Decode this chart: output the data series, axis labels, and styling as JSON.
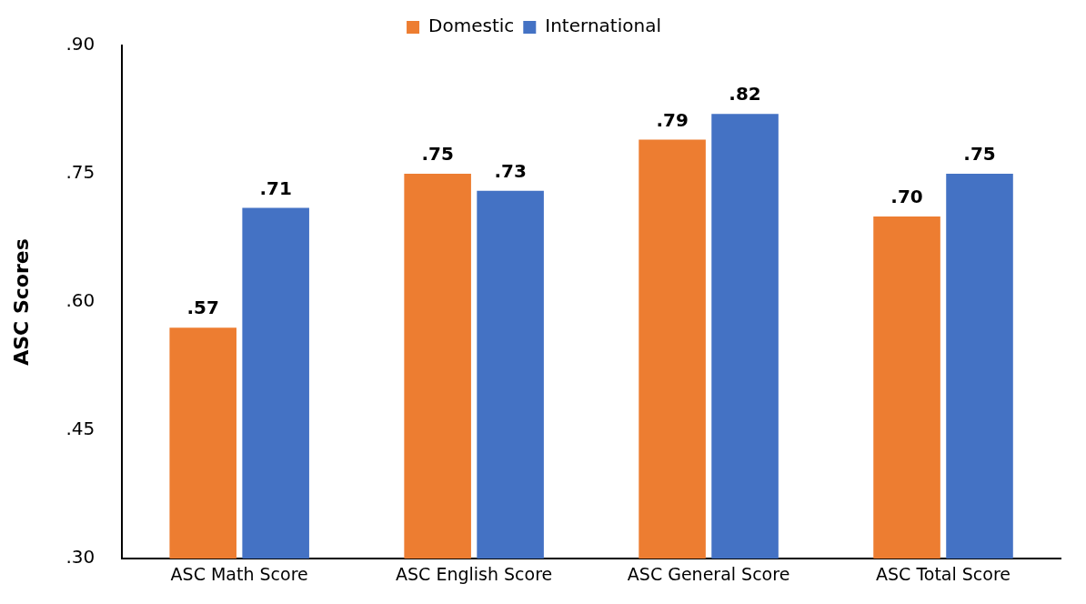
{
  "chart_data": {
    "type": "bar",
    "ylabel": "ASC Scores",
    "categories": [
      "ASC Math Score",
      "ASC English Score",
      "ASC General Score",
      "ASC Total Score"
    ],
    "series": [
      {
        "name": "Domestic",
        "color": "#ed7d31",
        "values": [
          0.57,
          0.75,
          0.79,
          0.7
        ],
        "value_labels": [
          ".57",
          ".75",
          ".79",
          ".70"
        ]
      },
      {
        "name": "International",
        "color": "#4472c4",
        "values": [
          0.71,
          0.73,
          0.82,
          0.75
        ],
        "value_labels": [
          ".71",
          ".73",
          ".82",
          ".75"
        ]
      }
    ],
    "ylim": [
      0.3,
      0.9
    ],
    "yticks": [
      {
        "value": 0.3,
        "label": ".30"
      },
      {
        "value": 0.45,
        "label": ".45"
      },
      {
        "value": 0.6,
        "label": ".60"
      },
      {
        "value": 0.75,
        "label": ".75"
      },
      {
        "value": 0.9,
        "label": ".90"
      }
    ],
    "grid": false,
    "legend": "top"
  }
}
